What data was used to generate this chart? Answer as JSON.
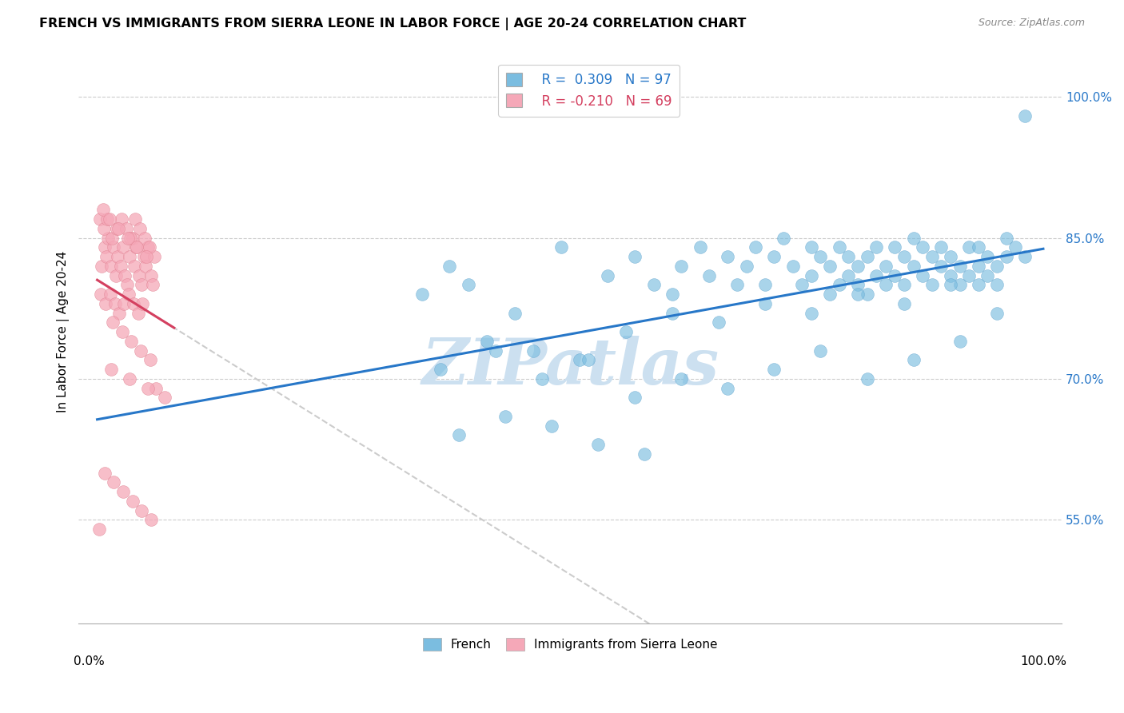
{
  "title": "FRENCH VS IMMIGRANTS FROM SIERRA LEONE IN LABOR FORCE | AGE 20-24 CORRELATION CHART",
  "source": "Source: ZipAtlas.com",
  "ylabel": "In Labor Force | Age 20-24",
  "yticks": [
    0.55,
    0.7,
    0.85,
    1.0
  ],
  "ytick_labels": [
    "55.0%",
    "70.0%",
    "85.0%",
    "100.0%"
  ],
  "r_french": 0.309,
  "n_french": 97,
  "r_sierra": -0.21,
  "n_sierra": 69,
  "blue_color": "#7bbde0",
  "blue_edge_color": "#5aa0cc",
  "blue_line_color": "#2777c8",
  "pink_color": "#f5a8b8",
  "pink_edge_color": "#e08090",
  "pink_line_color": "#d44060",
  "gray_line_color": "#cccccc",
  "watermark_color": "#cce0f0",
  "french_x": [
    0.35,
    0.38,
    0.4,
    0.45,
    0.5,
    0.55,
    0.58,
    0.6,
    0.62,
    0.63,
    0.65,
    0.66,
    0.68,
    0.69,
    0.7,
    0.71,
    0.72,
    0.73,
    0.74,
    0.75,
    0.76,
    0.77,
    0.77,
    0.78,
    0.79,
    0.79,
    0.8,
    0.8,
    0.81,
    0.81,
    0.82,
    0.82,
    0.83,
    0.83,
    0.84,
    0.84,
    0.85,
    0.85,
    0.86,
    0.86,
    0.87,
    0.87,
    0.88,
    0.88,
    0.89,
    0.89,
    0.9,
    0.9,
    0.91,
    0.91,
    0.92,
    0.92,
    0.93,
    0.93,
    0.94,
    0.94,
    0.95,
    0.95,
    0.95,
    0.96,
    0.96,
    0.97,
    0.97,
    0.98,
    0.98,
    0.99,
    1.0,
    1.0,
    0.42,
    0.47,
    0.52,
    0.57,
    0.62,
    0.67,
    0.72,
    0.77,
    0.82,
    0.87,
    0.92,
    0.97,
    0.37,
    0.43,
    0.48,
    0.53,
    0.58,
    0.63,
    0.68,
    0.73,
    0.78,
    0.83,
    0.88,
    0.93,
    0.39,
    0.44,
    0.49,
    0.54,
    0.59
  ],
  "french_y": [
    0.79,
    0.82,
    0.8,
    0.77,
    0.84,
    0.81,
    0.83,
    0.8,
    0.79,
    0.82,
    0.84,
    0.81,
    0.83,
    0.8,
    0.82,
    0.84,
    0.8,
    0.83,
    0.85,
    0.82,
    0.8,
    0.84,
    0.81,
    0.83,
    0.79,
    0.82,
    0.8,
    0.84,
    0.81,
    0.83,
    0.8,
    0.82,
    0.79,
    0.83,
    0.81,
    0.84,
    0.8,
    0.82,
    0.81,
    0.84,
    0.8,
    0.83,
    0.82,
    0.85,
    0.81,
    0.84,
    0.83,
    0.8,
    0.82,
    0.84,
    0.81,
    0.83,
    0.8,
    0.82,
    0.81,
    0.84,
    0.8,
    0.82,
    0.84,
    0.81,
    0.83,
    0.8,
    0.82,
    0.85,
    0.83,
    0.84,
    0.83,
    0.98,
    0.74,
    0.73,
    0.72,
    0.75,
    0.77,
    0.76,
    0.78,
    0.77,
    0.79,
    0.78,
    0.8,
    0.77,
    0.71,
    0.73,
    0.7,
    0.72,
    0.68,
    0.7,
    0.69,
    0.71,
    0.73,
    0.7,
    0.72,
    0.74,
    0.64,
    0.66,
    0.65,
    0.63,
    0.62
  ],
  "sierra_x": [
    0.005,
    0.008,
    0.01,
    0.012,
    0.015,
    0.018,
    0.02,
    0.022,
    0.025,
    0.028,
    0.03,
    0.032,
    0.035,
    0.038,
    0.04,
    0.042,
    0.045,
    0.048,
    0.05,
    0.052,
    0.055,
    0.058,
    0.06,
    0.062,
    0.003,
    0.007,
    0.011,
    0.016,
    0.021,
    0.026,
    0.031,
    0.036,
    0.041,
    0.046,
    0.051,
    0.056,
    0.004,
    0.009,
    0.014,
    0.019,
    0.024,
    0.029,
    0.034,
    0.039,
    0.044,
    0.049,
    0.006,
    0.013,
    0.023,
    0.033,
    0.043,
    0.053,
    0.063,
    0.073,
    0.002,
    0.017,
    0.027,
    0.037,
    0.047,
    0.057,
    0.008,
    0.018,
    0.028,
    0.038,
    0.048,
    0.058,
    0.015,
    0.035,
    0.055
  ],
  "sierra_y": [
    0.82,
    0.84,
    0.83,
    0.85,
    0.82,
    0.84,
    0.81,
    0.83,
    0.82,
    0.84,
    0.81,
    0.8,
    0.83,
    0.85,
    0.82,
    0.84,
    0.81,
    0.8,
    0.83,
    0.82,
    0.84,
    0.81,
    0.8,
    0.83,
    0.87,
    0.86,
    0.87,
    0.85,
    0.86,
    0.87,
    0.86,
    0.85,
    0.87,
    0.86,
    0.85,
    0.84,
    0.79,
    0.78,
    0.79,
    0.78,
    0.77,
    0.78,
    0.79,
    0.78,
    0.77,
    0.78,
    0.88,
    0.87,
    0.86,
    0.85,
    0.84,
    0.83,
    0.69,
    0.68,
    0.54,
    0.76,
    0.75,
    0.74,
    0.73,
    0.72,
    0.6,
    0.59,
    0.58,
    0.57,
    0.56,
    0.55,
    0.71,
    0.7,
    0.69
  ]
}
